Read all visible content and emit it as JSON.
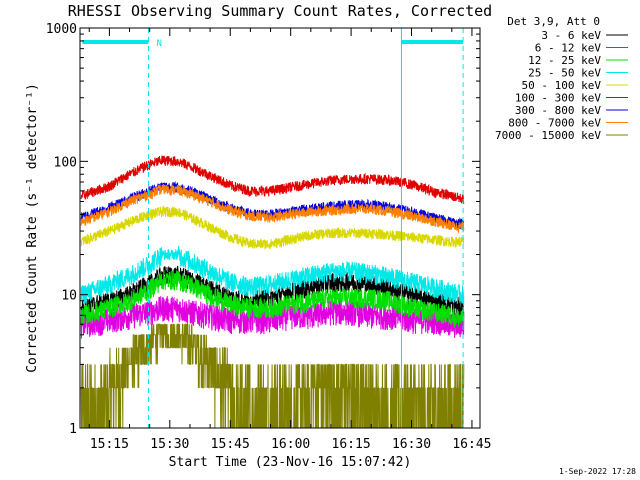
{
  "chart_data": {
    "type": "line",
    "title": "RHESSI Observing Summary Count Rates, Corrected",
    "xlabel": "Start Time (23-Nov-16 15:07:42)",
    "ylabel": "Corrected Count Rate (s⁻¹ detector⁻¹)",
    "y_scale": "log",
    "ylim": [
      1,
      1000
    ],
    "y_tick_labels": [
      "1",
      "10",
      "100",
      "1000"
    ],
    "y_tick_values": [
      1,
      10,
      100,
      1000
    ],
    "xlim": [
      "15:07:42",
      "16:47:00"
    ],
    "x_tick_labels": [
      "15:15",
      "15:30",
      "15:45",
      "16:00",
      "16:15",
      "16:30",
      "16:45"
    ],
    "x_tick_minutes": [
      915,
      930,
      945,
      960,
      975,
      990,
      1005
    ],
    "x_range_minutes": [
      907.7,
      1007.0
    ],
    "legend_header": "Det 3,9, Att 0",
    "legend_position": "top-right outside plot",
    "series": [
      {
        "name": "3 - 6 keV",
        "color": "#000000",
        "x": [
          908,
          915,
          920,
          925,
          928,
          932,
          935,
          940,
          945,
          950,
          955,
          960,
          965,
          970,
          975,
          980,
          985,
          990,
          995,
          1000,
          1003
        ],
        "values": [
          8,
          9,
          10,
          12,
          14,
          14,
          13,
          11,
          9.5,
          9,
          9.5,
          10.5,
          11.5,
          12.5,
          12.5,
          12,
          11,
          10,
          9,
          8.5,
          8
        ]
      },
      {
        "name": "6 - 12 keV",
        "color": "#e000e0",
        "x": [
          908,
          915,
          920,
          925,
          928,
          932,
          935,
          940,
          945,
          950,
          955,
          960,
          965,
          970,
          975,
          980,
          985,
          990,
          995,
          1000,
          1003
        ],
        "values": [
          6,
          6.5,
          7,
          7.5,
          8,
          8,
          7.5,
          7,
          6.5,
          6.5,
          6.5,
          7,
          7,
          7.5,
          7.5,
          7,
          7,
          6.5,
          6.5,
          6,
          6
        ]
      },
      {
        "name": "12 - 25 keV",
        "color": "#00e000",
        "x": [
          908,
          915,
          920,
          925,
          928,
          932,
          935,
          940,
          945,
          950,
          955,
          960,
          965,
          970,
          975,
          980,
          985,
          990,
          995,
          1000,
          1003
        ],
        "values": [
          7,
          8,
          9,
          11,
          13,
          13,
          12,
          10,
          8.5,
          8,
          8,
          8.5,
          9,
          9.5,
          9.5,
          9.5,
          9,
          8,
          7.5,
          7,
          6.5
        ]
      },
      {
        "name": "25 - 50 keV",
        "color": "#00e8e8",
        "x": [
          908,
          915,
          920,
          925,
          928,
          932,
          935,
          940,
          945,
          950,
          955,
          960,
          965,
          970,
          975,
          980,
          985,
          990,
          995,
          1000,
          1003
        ],
        "values": [
          10,
          12,
          14,
          17,
          20,
          20,
          18,
          15,
          12.5,
          11.5,
          12,
          13,
          14,
          15,
          15,
          14.5,
          13.5,
          12.5,
          11.5,
          10.5,
          10
        ]
      },
      {
        "name": "50 - 100 keV",
        "color": "#d8d800",
        "x": [
          908,
          915,
          920,
          925,
          928,
          932,
          935,
          940,
          945,
          950,
          955,
          960,
          965,
          970,
          975,
          980,
          985,
          990,
          995,
          1000,
          1003
        ],
        "values": [
          25,
          30,
          35,
          40,
          42,
          42,
          38,
          32,
          27,
          24,
          24,
          26,
          28,
          29,
          29,
          29,
          28,
          27,
          26,
          25,
          25
        ]
      },
      {
        "name": "100 - 300 keV",
        "color": "#e00000",
        "x": [
          908,
          915,
          920,
          925,
          928,
          932,
          935,
          940,
          945,
          950,
          955,
          960,
          965,
          970,
          975,
          980,
          985,
          990,
          995,
          1000,
          1003
        ],
        "values": [
          55,
          65,
          80,
          95,
          102,
          100,
          92,
          78,
          66,
          60,
          60,
          64,
          68,
          72,
          74,
          74,
          72,
          67,
          60,
          55,
          52
        ]
      },
      {
        "name": "300 - 800 keV",
        "color": "#0000e0",
        "x": [
          908,
          915,
          920,
          925,
          928,
          932,
          935,
          940,
          945,
          950,
          955,
          960,
          965,
          970,
          975,
          980,
          985,
          990,
          995,
          1000,
          1003
        ],
        "values": [
          38,
          45,
          52,
          60,
          65,
          64,
          60,
          52,
          45,
          40,
          40,
          42,
          44,
          46,
          47,
          47,
          45,
          42,
          38,
          35,
          34
        ]
      },
      {
        "name": "800 - 7000 keV",
        "color": "#ff8000",
        "x": [
          908,
          915,
          920,
          925,
          928,
          932,
          935,
          940,
          945,
          950,
          955,
          960,
          965,
          970,
          975,
          980,
          985,
          990,
          995,
          1000,
          1003
        ],
        "values": [
          35,
          42,
          50,
          57,
          62,
          61,
          57,
          50,
          43,
          39,
          38,
          40,
          42,
          43,
          44,
          44,
          42,
          39,
          36,
          33,
          32
        ]
      },
      {
        "name": "7000 - 15000 keV",
        "color": "#808000",
        "x": [
          908,
          915,
          920,
          925,
          928,
          932,
          935,
          940,
          945,
          950,
          955,
          960,
          965,
          970,
          975,
          980,
          985,
          990,
          995,
          1000,
          1003
        ],
        "values": [
          1.5,
          2,
          3,
          4.5,
          5,
          5,
          4.5,
          3,
          2,
          1.5,
          1.5,
          1.8,
          2,
          2,
          2,
          2,
          1.5,
          1.5,
          1.5,
          1.5,
          1.5
        ]
      }
    ],
    "attenuator_state_bars": [
      {
        "start_min": 908.3,
        "end_min": 924.7,
        "label": "N"
      },
      {
        "start_min": 987.5,
        "end_min": 1002.8,
        "label": ""
      }
    ],
    "vertical_markers_solid_min": [
      987.5
    ],
    "vertical_markers_dashed_min": [
      924.7,
      1002.8
    ],
    "marker_color": "#00e8e8",
    "grid": false,
    "timestamp": "1-Sep-2022 17:28"
  }
}
